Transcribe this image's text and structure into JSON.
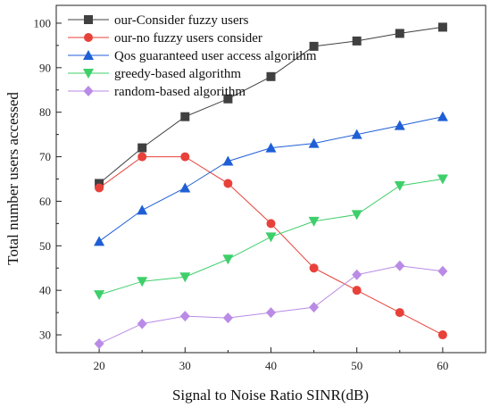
{
  "chart_data": {
    "type": "line",
    "xlabel": "Signal to Noise Ratio SINR(dB)",
    "ylabel": "Total number users accessed",
    "xlim": [
      15,
      65
    ],
    "ylim": [
      26,
      104
    ],
    "xticks": [
      20,
      30,
      40,
      50,
      60
    ],
    "yticks": [
      30,
      40,
      50,
      60,
      70,
      80,
      90,
      100
    ],
    "grid": false,
    "legend_position": "top-left",
    "x": [
      20,
      25,
      30,
      35,
      40,
      45,
      50,
      55,
      60
    ],
    "series": [
      {
        "name": "our-Consider fuzzy users",
        "color": "#404040",
        "marker": "square",
        "values": [
          64,
          72,
          79,
          83,
          88,
          94.8,
          96,
          97.7,
          99.1
        ]
      },
      {
        "name": "our-no fuzzy users consider",
        "color": "#e8413a",
        "marker": "circle",
        "values": [
          63,
          70,
          70,
          64,
          55,
          45,
          40,
          35,
          30
        ]
      },
      {
        "name": "Qos guaranteed user access algorithm",
        "color": "#1f5fd6",
        "marker": "triangle-up",
        "values": [
          51,
          58,
          63,
          69,
          72,
          73,
          75,
          77,
          79
        ]
      },
      {
        "name": "greedy-based algorithm",
        "color": "#3ecf6a",
        "marker": "triangle-down",
        "values": [
          39,
          42,
          43,
          47,
          52,
          55.5,
          57,
          63.5,
          65
        ]
      },
      {
        "name": "random-based algorithm",
        "color": "#b98be6",
        "marker": "diamond",
        "values": [
          28,
          32.5,
          34.2,
          33.8,
          35,
          36.2,
          43.5,
          45.5,
          44.3
        ]
      }
    ]
  }
}
